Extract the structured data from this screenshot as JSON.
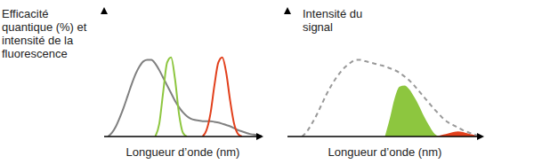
{
  "chart_data": [
    {
      "type": "line",
      "y_label": "Efficacité quantique (%) et intensité de la fluorescence",
      "x_label": "Longueur d’onde (nm)",
      "xlim": [
        0,
        100
      ],
      "ylim": [
        0,
        100
      ],
      "tick_labels": false,
      "grid": false,
      "x": [
        0,
        2.5,
        5,
        7.5,
        10,
        12.5,
        15,
        17.5,
        20,
        22.5,
        25,
        27.5,
        30,
        32.5,
        35,
        37.5,
        40,
        42.5,
        45,
        47.5,
        50,
        52.5,
        55,
        57.5,
        60,
        62.5,
        65,
        67.5,
        70,
        72.5,
        75,
        77.5,
        80,
        82.5,
        85,
        87.5,
        90,
        92.5,
        95,
        97.5,
        100
      ],
      "series": [
        {
          "color": "#808080",
          "values": [
            null,
            0,
            3,
            8,
            15,
            23,
            32,
            41,
            49,
            55,
            59,
            60,
            60,
            57,
            52,
            46,
            40,
            34,
            28,
            23,
            19,
            16,
            14,
            13,
            12.5,
            12,
            12,
            12,
            11.5,
            11,
            10,
            9,
            8,
            6.5,
            5,
            4,
            3,
            2,
            1.5,
            1,
            0.5
          ]
        },
        {
          "color": "#8dc63f",
          "values": [
            null,
            null,
            null,
            null,
            null,
            null,
            null,
            null,
            null,
            null,
            null,
            null,
            null,
            0,
            10,
            35,
            58,
            62,
            45,
            18,
            3,
            0,
            null,
            null,
            null,
            null,
            null,
            null,
            null,
            null,
            null,
            null,
            null,
            null,
            null,
            null,
            null,
            null,
            null,
            null,
            null
          ]
        },
        {
          "color": "#e2401c",
          "values": [
            null,
            null,
            null,
            null,
            null,
            null,
            null,
            null,
            null,
            null,
            null,
            null,
            null,
            null,
            null,
            null,
            null,
            null,
            null,
            null,
            null,
            null,
            null,
            null,
            null,
            0,
            5,
            18,
            40,
            58,
            62,
            50,
            28,
            10,
            2,
            0,
            null,
            null,
            null,
            null,
            null
          ]
        }
      ]
    },
    {
      "type": "line",
      "y_label": "Intensité du signal",
      "x_label": "Longueur d’onde (nm)",
      "xlim": [
        0,
        100
      ],
      "ylim": [
        0,
        100
      ],
      "tick_labels": false,
      "grid": false,
      "x": [
        0,
        2.5,
        5,
        7.5,
        10,
        12.5,
        15,
        17.5,
        20,
        22.5,
        25,
        27.5,
        30,
        32.5,
        35,
        37.5,
        40,
        42.5,
        45,
        47.5,
        50,
        52.5,
        55,
        57.5,
        60,
        62.5,
        65,
        67.5,
        70,
        72.5,
        75,
        77.5,
        80,
        82.5,
        85,
        87.5,
        90,
        92.5,
        95,
        97.5,
        100
      ],
      "series": [
        {
          "type": "area",
          "color": "#8dc63f",
          "values": [
            null,
            null,
            null,
            null,
            null,
            null,
            null,
            null,
            null,
            null,
            null,
            null,
            null,
            null,
            null,
            null,
            null,
            null,
            null,
            null,
            0,
            14,
            30,
            39,
            40,
            37,
            31,
            24,
            16,
            9,
            3,
            0,
            null,
            null,
            null,
            null,
            null,
            null,
            null,
            null,
            null
          ]
        },
        {
          "type": "area",
          "color": "#e2401c",
          "values": [
            null,
            null,
            null,
            null,
            null,
            null,
            null,
            null,
            null,
            null,
            null,
            null,
            null,
            null,
            null,
            null,
            null,
            null,
            null,
            null,
            null,
            null,
            null,
            null,
            null,
            null,
            null,
            null,
            null,
            null,
            0,
            0.5,
            1.5,
            2.5,
            3.5,
            4,
            3.5,
            2.5,
            1.5,
            0.5,
            0
          ]
        },
        {
          "color": "#999999",
          "line_style": "dashed",
          "values": [
            null,
            null,
            null,
            0,
            4,
            10,
            17,
            25,
            33,
            40,
            46,
            51,
            55,
            58,
            60,
            60,
            59,
            58,
            57,
            56,
            55,
            53.5,
            52,
            50,
            47,
            44,
            40,
            35.5,
            31,
            26.5,
            22,
            18,
            14,
            11,
            9,
            7,
            5,
            3.5,
            2,
            1,
            0
          ]
        }
      ]
    }
  ]
}
